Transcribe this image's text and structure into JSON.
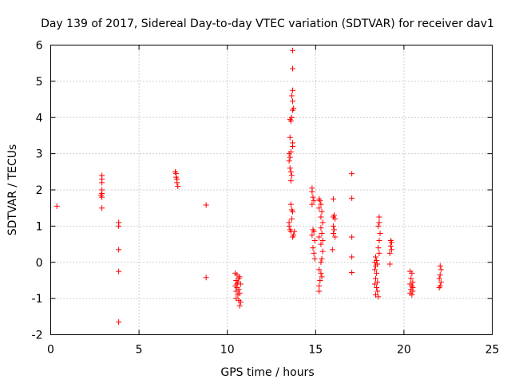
{
  "chart_data": {
    "type": "scatter",
    "title": "Day 139 of 2017, Sidereal Day-to-day VTEC variation (SDTVAR) for receiver dav1",
    "xlabel": "GPS time / hours",
    "ylabel": "SDTVAR / TECUs",
    "xlim": [
      0,
      25
    ],
    "ylim": [
      -2,
      6
    ],
    "xticks": [
      0,
      5,
      10,
      15,
      20,
      25
    ],
    "yticks": [
      -2,
      -1,
      0,
      1,
      2,
      3,
      4,
      5,
      6
    ],
    "grid": true,
    "marker": "+",
    "color": "#ff0000",
    "series": [
      {
        "name": "SDTVAR",
        "points": [
          [
            0.35,
            1.55
          ],
          [
            2.9,
            2.4
          ],
          [
            2.9,
            2.3
          ],
          [
            2.9,
            2.2
          ],
          [
            2.9,
            2.0
          ],
          [
            2.9,
            1.9
          ],
          [
            2.85,
            1.85
          ],
          [
            2.9,
            1.8
          ],
          [
            2.9,
            1.5
          ],
          [
            3.85,
            1.1
          ],
          [
            3.85,
            1.0
          ],
          [
            3.85,
            0.35
          ],
          [
            3.85,
            -0.25
          ],
          [
            3.85,
            -1.65
          ],
          [
            7.05,
            2.5
          ],
          [
            7.1,
            2.45
          ],
          [
            7.1,
            2.35
          ],
          [
            7.15,
            2.3
          ],
          [
            7.15,
            2.2
          ],
          [
            7.2,
            2.1
          ],
          [
            8.8,
            1.58
          ],
          [
            8.8,
            -0.42
          ],
          [
            10.45,
            -0.3
          ],
          [
            10.55,
            -0.35
          ],
          [
            10.7,
            -0.4
          ],
          [
            10.5,
            -0.5
          ],
          [
            10.6,
            -0.55
          ],
          [
            10.75,
            -0.6
          ],
          [
            10.45,
            -0.65
          ],
          [
            10.55,
            -0.7
          ],
          [
            10.65,
            -0.75
          ],
          [
            10.5,
            -0.8
          ],
          [
            10.7,
            -0.85
          ],
          [
            10.6,
            -0.9
          ],
          [
            10.5,
            -1.0
          ],
          [
            10.65,
            -1.05
          ],
          [
            10.75,
            -1.1
          ],
          [
            10.7,
            -1.2
          ],
          [
            10.55,
            -0.6
          ],
          [
            10.65,
            -0.45
          ],
          [
            13.5,
            3.0
          ],
          [
            13.55,
            2.9
          ],
          [
            13.5,
            2.8
          ],
          [
            13.6,
            3.05
          ],
          [
            13.55,
            2.6
          ],
          [
            13.6,
            2.5
          ],
          [
            13.65,
            2.4
          ],
          [
            13.6,
            2.25
          ],
          [
            13.7,
            3.2
          ],
          [
            13.7,
            3.3
          ],
          [
            13.55,
            3.45
          ],
          [
            13.6,
            3.9
          ],
          [
            13.65,
            4.0
          ],
          [
            13.55,
            3.95
          ],
          [
            13.7,
            4.2
          ],
          [
            13.75,
            4.25
          ],
          [
            13.7,
            4.45
          ],
          [
            13.65,
            4.6
          ],
          [
            13.7,
            4.75
          ],
          [
            13.7,
            5.35
          ],
          [
            13.7,
            5.85
          ],
          [
            13.5,
            1.0
          ],
          [
            13.55,
            0.9
          ],
          [
            13.6,
            0.85
          ],
          [
            13.5,
            1.1
          ],
          [
            13.65,
            1.2
          ],
          [
            13.7,
            1.4
          ],
          [
            13.65,
            1.45
          ],
          [
            13.6,
            1.6
          ],
          [
            13.75,
            0.75
          ],
          [
            13.7,
            0.7
          ],
          [
            13.8,
            0.85
          ],
          [
            14.8,
            2.05
          ],
          [
            14.8,
            1.95
          ],
          [
            14.85,
            1.8
          ],
          [
            14.9,
            1.7
          ],
          [
            14.8,
            1.6
          ],
          [
            14.85,
            0.9
          ],
          [
            14.9,
            0.85
          ],
          [
            14.8,
            0.75
          ],
          [
            14.95,
            0.6
          ],
          [
            14.85,
            0.4
          ],
          [
            14.9,
            0.25
          ],
          [
            14.95,
            0.1
          ],
          [
            15.2,
            1.75
          ],
          [
            15.25,
            1.7
          ],
          [
            15.3,
            1.6
          ],
          [
            15.2,
            1.5
          ],
          [
            15.35,
            1.4
          ],
          [
            15.3,
            1.25
          ],
          [
            15.4,
            1.1
          ],
          [
            15.3,
            0.95
          ],
          [
            15.35,
            0.8
          ],
          [
            15.2,
            0.7
          ],
          [
            15.4,
            0.6
          ],
          [
            15.3,
            0.5
          ],
          [
            15.4,
            0.3
          ],
          [
            15.35,
            0.1
          ],
          [
            15.3,
            0.0
          ],
          [
            15.2,
            -0.2
          ],
          [
            15.3,
            -0.3
          ],
          [
            15.35,
            -0.4
          ],
          [
            15.25,
            -0.5
          ],
          [
            15.2,
            -0.65
          ],
          [
            15.2,
            -0.8
          ],
          [
            16.0,
            1.75
          ],
          [
            16.05,
            1.3
          ],
          [
            16.0,
            1.25
          ],
          [
            16.1,
            1.2
          ],
          [
            16.0,
            1.0
          ],
          [
            16.05,
            0.9
          ],
          [
            16.0,
            0.8
          ],
          [
            16.1,
            0.7
          ],
          [
            15.95,
            0.35
          ],
          [
            17.05,
            2.45
          ],
          [
            17.05,
            1.77
          ],
          [
            17.05,
            0.7
          ],
          [
            17.05,
            0.15
          ],
          [
            17.05,
            -0.28
          ],
          [
            18.4,
            0.15
          ],
          [
            18.45,
            0.05
          ],
          [
            18.35,
            0.0
          ],
          [
            18.5,
            -0.05
          ],
          [
            18.4,
            -0.1
          ],
          [
            18.35,
            -0.2
          ],
          [
            18.45,
            -0.3
          ],
          [
            18.4,
            -0.45
          ],
          [
            18.5,
            -0.55
          ],
          [
            18.35,
            -0.6
          ],
          [
            18.45,
            -0.7
          ],
          [
            18.5,
            -0.8
          ],
          [
            18.4,
            -0.9
          ],
          [
            18.55,
            -0.95
          ],
          [
            18.6,
            1.25
          ],
          [
            18.6,
            1.1
          ],
          [
            18.55,
            1.0
          ],
          [
            18.65,
            0.8
          ],
          [
            18.6,
            0.6
          ],
          [
            18.55,
            0.4
          ],
          [
            18.6,
            0.25
          ],
          [
            19.25,
            0.6
          ],
          [
            19.3,
            0.55
          ],
          [
            19.25,
            0.45
          ],
          [
            19.3,
            0.35
          ],
          [
            19.2,
            0.25
          ],
          [
            19.2,
            -0.05
          ],
          [
            20.35,
            -0.25
          ],
          [
            20.45,
            -0.3
          ],
          [
            20.4,
            -0.45
          ],
          [
            20.5,
            -0.55
          ],
          [
            20.35,
            -0.6
          ],
          [
            20.45,
            -0.65
          ],
          [
            20.4,
            -0.75
          ],
          [
            20.5,
            -0.8
          ],
          [
            20.35,
            -0.85
          ],
          [
            20.45,
            -0.9
          ],
          [
            20.5,
            -0.7
          ],
          [
            22.05,
            -0.1
          ],
          [
            22.1,
            -0.2
          ],
          [
            22.05,
            -0.35
          ],
          [
            22.0,
            -0.45
          ],
          [
            22.1,
            -0.55
          ],
          [
            22.05,
            -0.65
          ],
          [
            22.0,
            -0.7
          ]
        ]
      }
    ]
  }
}
